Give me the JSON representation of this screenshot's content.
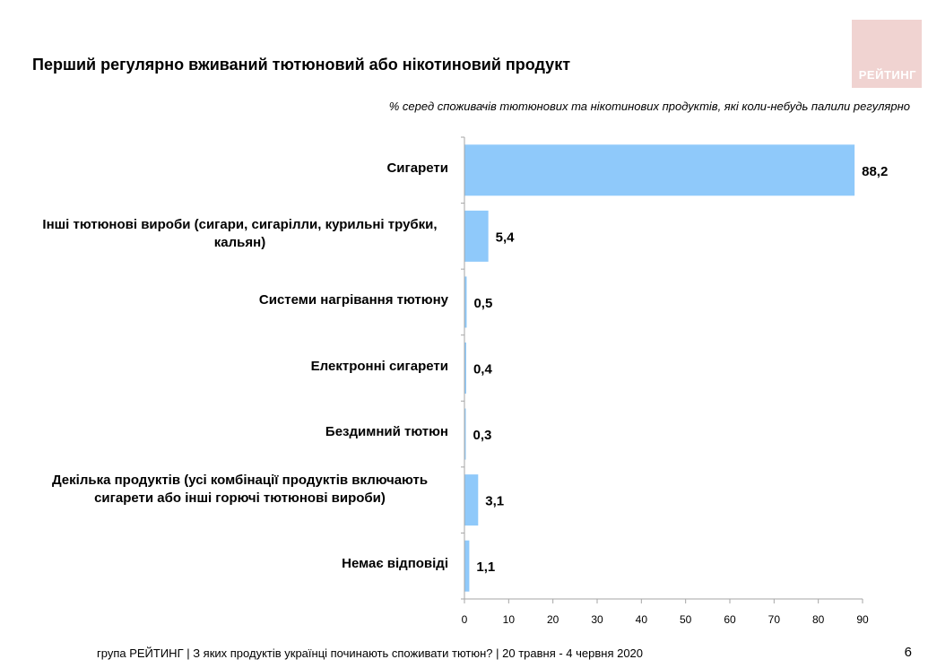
{
  "header": {
    "title": "Перший регулярно вживаний тютюновий або нікотиновий продукт",
    "subtitle": "% серед споживачів тютюнових та нікотинових продуктів, які коли-небудь палили регулярно",
    "logo_text": "РЕЙТИНГ"
  },
  "chart_data": {
    "type": "bar",
    "orientation": "horizontal",
    "categories": [
      "Сигарети",
      "Інші тютюнові вироби (сигари, сигарілли, курильні трубки, кальян)",
      "Системи нагрівання тютюну",
      "Електронні сигарети",
      "Бездимний тютюн",
      "Декілька продуктів (усі комбінації продуктів включають сигарети або інші горючі тютюнові вироби)",
      "Немає відповіді"
    ],
    "values": [
      88.2,
      5.4,
      0.5,
      0.4,
      0.3,
      3.1,
      1.1
    ],
    "value_labels": [
      "88,2",
      "5,4",
      "0,5",
      "0,4",
      "0,3",
      "3,1",
      "1,1"
    ],
    "xlim": [
      0,
      90
    ],
    "xticks": [
      0,
      10,
      20,
      30,
      40,
      50,
      60,
      70,
      80,
      90
    ],
    "bar_color": "#8fc9fa",
    "grid": false
  },
  "footer": {
    "text": "група РЕЙТИНГ | З яких продуктів українці починають споживати тютюн? | 20 травня - 4 червня 2020",
    "page": "6"
  }
}
